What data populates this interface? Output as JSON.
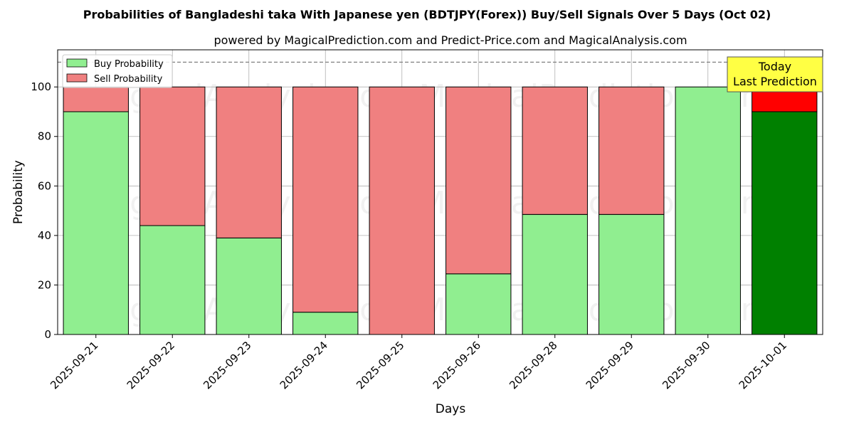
{
  "chart_data": {
    "type": "bar",
    "stacked": true,
    "title": "Probabilities of Bangladeshi taka With Japanese yen (BDTJPY(Forex)) Buy/Sell Signals Over 5 Days (Oct 02)",
    "subtitle": "powered by MagicalPrediction.com and Predict-Price.com and MagicalAnalysis.com",
    "xlabel": "Days",
    "ylabel": "Probability",
    "ylim": [
      0,
      115
    ],
    "yticks": [
      0,
      20,
      40,
      60,
      80,
      100
    ],
    "grid": true,
    "legend_position": "top-left",
    "reference_line": 110,
    "categories": [
      "2025-09-21",
      "2025-09-22",
      "2025-09-23",
      "2025-09-24",
      "2025-09-25",
      "2025-09-26",
      "2025-09-28",
      "2025-09-29",
      "2025-09-30",
      "2025-10-01"
    ],
    "series": [
      {
        "name": "Buy Probability",
        "color": "#90ee90",
        "highlight_color": "#008000",
        "values": [
          90,
          44,
          39,
          9,
          0,
          24.5,
          48.5,
          48.5,
          100,
          90
        ]
      },
      {
        "name": "Sell Probability",
        "color": "#f08080",
        "highlight_color": "#ff0000",
        "values": [
          10,
          56,
          61,
          91,
          100,
          75.5,
          51.5,
          51.5,
          0,
          10
        ]
      }
    ],
    "annotation": {
      "lines": [
        "Today",
        "Last Prediction"
      ],
      "color": "#ffff44"
    },
    "watermarks": [
      "MagicalAnalysis.com",
      "MagicalPrediction.com"
    ]
  }
}
